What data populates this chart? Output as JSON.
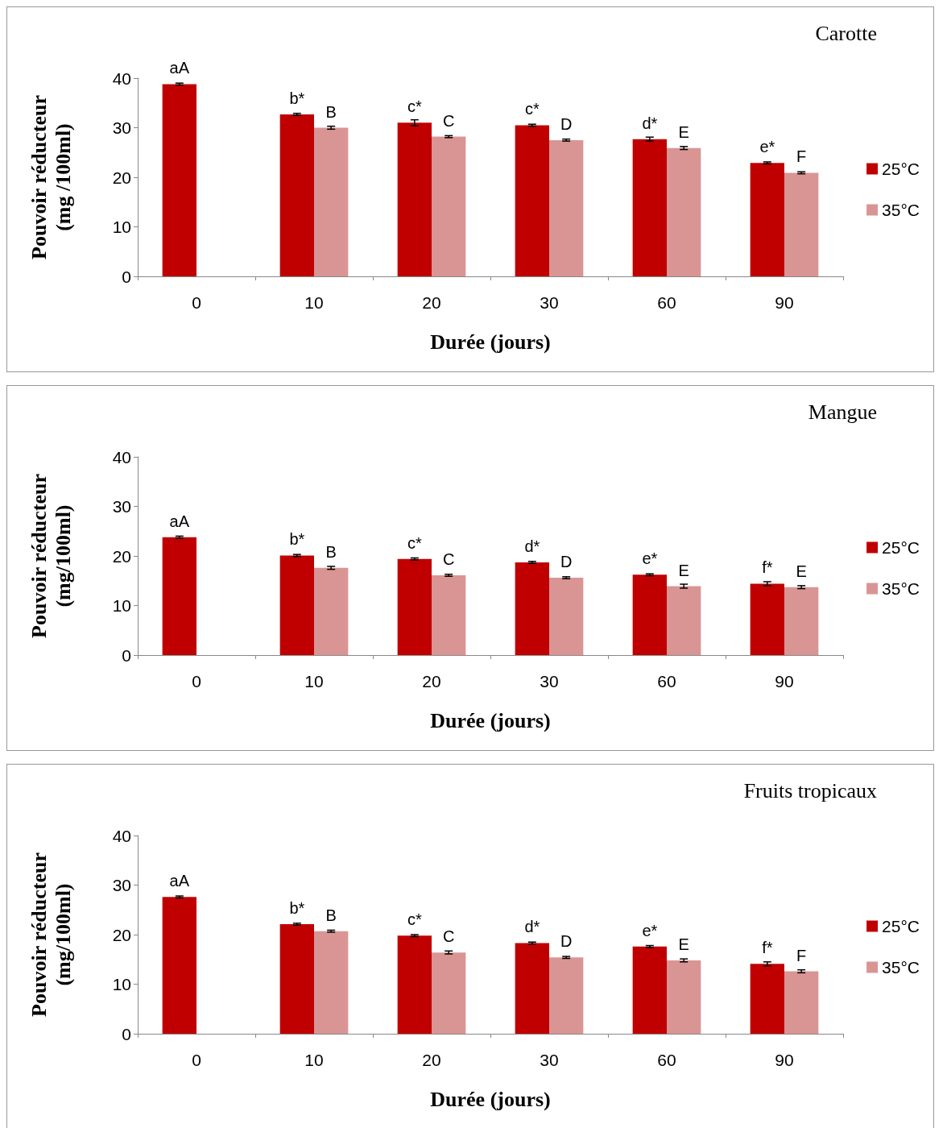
{
  "chart_data": [
    {
      "type": "bar",
      "title": "Carotte",
      "xlabel": "Durée (jours)",
      "ylabel": "Pouvoir réducteur\n(mg /100ml)",
      "categories": [
        "0",
        "10",
        "20",
        "30",
        "60",
        "90"
      ],
      "ylim": [
        0,
        40
      ],
      "yticks": [
        0,
        10,
        20,
        30,
        40
      ],
      "grid": false,
      "legend": "right",
      "series": [
        {
          "name": "25°C",
          "color": "#c00000",
          "values": [
            38.8,
            32.7,
            31.0,
            30.5,
            27.7,
            22.9
          ],
          "errors": [
            0.2,
            0.2,
            0.6,
            0.2,
            0.4,
            0.2
          ],
          "value_labels": [
            "aA",
            "b*",
            "c*",
            "c*",
            "d*",
            "e*"
          ]
        },
        {
          "name": "35°C",
          "color": "#d99594",
          "values": [
            null,
            30.0,
            28.2,
            27.5,
            25.9,
            20.9
          ],
          "errors": [
            null,
            0.3,
            0.2,
            0.2,
            0.3,
            0.2
          ],
          "value_labels": [
            null,
            "B",
            "C",
            "D",
            "E",
            "F"
          ]
        }
      ]
    },
    {
      "type": "bar",
      "title": "Mangue",
      "xlabel": "Durée (jours)",
      "ylabel": "Pouvoir réducteur\n(mg/100ml)",
      "categories": [
        "0",
        "10",
        "20",
        "30",
        "60",
        "90"
      ],
      "ylim": [
        0,
        40
      ],
      "yticks": [
        0,
        10,
        20,
        30,
        40
      ],
      "grid": false,
      "legend": "right",
      "series": [
        {
          "name": "25°C",
          "color": "#c00000",
          "values": [
            23.8,
            20.1,
            19.4,
            18.7,
            16.2,
            14.4
          ],
          "errors": [
            0.2,
            0.2,
            0.2,
            0.2,
            0.2,
            0.4
          ],
          "value_labels": [
            "aA",
            "b*",
            "c*",
            "d*",
            "e*",
            "f*"
          ]
        },
        {
          "name": "35°C",
          "color": "#d99594",
          "values": [
            null,
            17.6,
            16.1,
            15.6,
            13.9,
            13.7
          ],
          "errors": [
            null,
            0.3,
            0.2,
            0.2,
            0.4,
            0.3
          ],
          "value_labels": [
            null,
            "B",
            "C",
            "D",
            "E",
            "E"
          ]
        }
      ]
    },
    {
      "type": "bar",
      "title": "Fruits tropicaux",
      "xlabel": "Durée (jours)",
      "ylabel": "Pouvoir réducteur\n(mg/100ml)",
      "categories": [
        "0",
        "10",
        "20",
        "30",
        "60",
        "90"
      ],
      "ylim": [
        0,
        40
      ],
      "yticks": [
        0,
        10,
        20,
        30,
        40
      ],
      "grid": false,
      "legend": "right",
      "series": [
        {
          "name": "25°C",
          "color": "#c00000",
          "values": [
            27.6,
            22.1,
            19.8,
            18.3,
            17.6,
            14.1
          ],
          "errors": [
            0.2,
            0.2,
            0.2,
            0.2,
            0.2,
            0.4
          ],
          "value_labels": [
            "aA",
            "b*",
            "c*",
            "d*",
            "e*",
            "f*"
          ]
        },
        {
          "name": "35°C",
          "color": "#d99594",
          "values": [
            null,
            20.7,
            16.4,
            15.4,
            14.8,
            12.6
          ],
          "errors": [
            null,
            0.2,
            0.3,
            0.2,
            0.3,
            0.3
          ],
          "value_labels": [
            null,
            "B",
            "C",
            "D",
            "E",
            "F"
          ]
        }
      ]
    }
  ]
}
